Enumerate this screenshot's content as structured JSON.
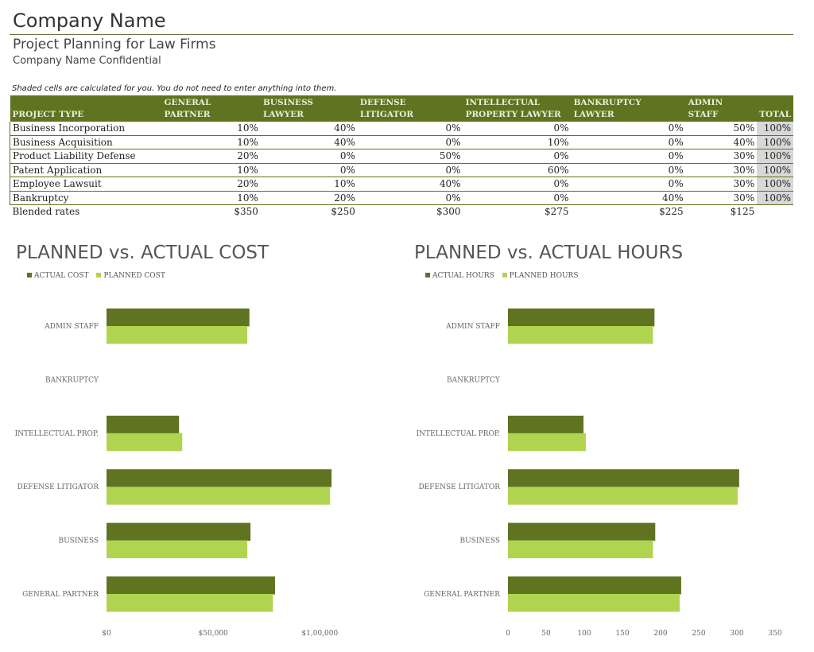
{
  "header": {
    "company": "Company Name",
    "subtitle": "Project Planning for Law Firms",
    "confidential": "Company Name Confidential"
  },
  "note": "Shaded cells are calculated for you. You do not need to enter anything into them.",
  "table": {
    "columns": [
      "PROJECT TYPE",
      "GENERAL PARTNER",
      "BUSINESS LAWYER",
      "DEFENSE LITIGATOR",
      "INTELLECTUAL PROPERTY LAWYER",
      "BANKRUPTCY LAWYER",
      "ADMIN STAFF",
      "TOTAL"
    ],
    "rows": [
      [
        "Business Incorporation",
        "10%",
        "40%",
        "0%",
        "0%",
        "0%",
        "50%",
        "100%"
      ],
      [
        "Business Acquisition",
        "10%",
        "40%",
        "0%",
        "10%",
        "0%",
        "40%",
        "100%"
      ],
      [
        "Product Liability Defense",
        "20%",
        "0%",
        "50%",
        "0%",
        "0%",
        "30%",
        "100%"
      ],
      [
        "Patent Application",
        "10%",
        "0%",
        "0%",
        "60%",
        "0%",
        "30%",
        "100%"
      ],
      [
        "Employee Lawsuit",
        "20%",
        "10%",
        "40%",
        "0%",
        "0%",
        "30%",
        "100%"
      ],
      [
        "Bankruptcy",
        "10%",
        "20%",
        "0%",
        "0%",
        "40%",
        "30%",
        "100%"
      ]
    ],
    "blended": [
      "Blended rates",
      "$350",
      "$250",
      "$300",
      "$275",
      "$225",
      "$125"
    ]
  },
  "colors": {
    "actual": "#5f7320",
    "planned": "#b0d450",
    "header_bg": "#5f7320",
    "shaded": "#d8d8d8"
  },
  "chart_data": [
    {
      "type": "bar",
      "orientation": "horizontal",
      "title": "PLANNED vs. ACTUAL COST",
      "legend": "top-left",
      "categories": [
        "ADMIN STAFF",
        "BANKRUPTCY",
        "INTELLECTUAL PROP.",
        "DEFENSE LITIGATOR",
        "BUSINESS",
        "GENERAL PARTNER"
      ],
      "series": [
        {
          "name": "ACTUAL COST",
          "values": [
            67000,
            0,
            34000,
            105500,
            67500,
            79000
          ]
        },
        {
          "name": "PLANNED COST",
          "values": [
            66000,
            0,
            35500,
            104800,
            66000,
            78000
          ]
        }
      ],
      "xlim": [
        0,
        120000
      ],
      "ticks": [
        0,
        50000,
        100000
      ],
      "tick_labels": [
        "$0",
        "$50,000",
        "$1,00,000"
      ]
    },
    {
      "type": "bar",
      "orientation": "horizontal",
      "title": "PLANNED vs. ACTUAL HOURS",
      "legend": "top-left",
      "categories": [
        "ADMIN STAFF",
        "BANKRUPTCY",
        "INTELLECTUAL PROP.",
        "DEFENSE LITIGATOR",
        "BUSINESS",
        "GENERAL PARTNER"
      ],
      "series": [
        {
          "name": "ACTUAL HOURS",
          "values": [
            192,
            0,
            99,
            303,
            193,
            227
          ]
        },
        {
          "name": "PLANNED HOURS",
          "values": [
            190,
            0,
            102,
            301,
            190,
            225
          ]
        }
      ],
      "xlim": [
        0,
        350
      ],
      "ticks": [
        0,
        50,
        100,
        150,
        200,
        250,
        300,
        350
      ],
      "tick_labels": [
        "0",
        "50",
        "100",
        "150",
        "200",
        "250",
        "300",
        "350"
      ]
    }
  ]
}
